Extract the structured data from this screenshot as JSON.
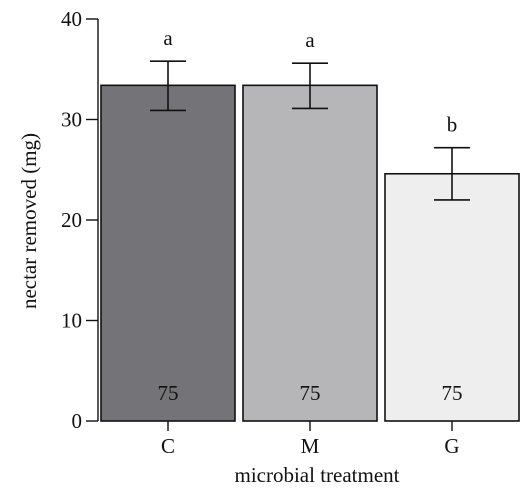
{
  "chart_data": {
    "type": "bar",
    "categories": [
      "C",
      "M",
      "G"
    ],
    "values": [
      33.4,
      33.4,
      24.6
    ],
    "error_bars": [
      {
        "low": 30.9,
        "high": 35.8
      },
      {
        "low": 31.1,
        "high": 35.6
      },
      {
        "low": 22.0,
        "high": 27.2
      }
    ],
    "significance_letters": [
      "a",
      "a",
      "b"
    ],
    "sample_sizes": [
      "75",
      "75",
      "75"
    ],
    "bar_colors": [
      "#747478",
      "#b6b6b8",
      "#eeeeee"
    ],
    "xlabel": "microbial treatment",
    "ylabel": "nectar removed (mg)",
    "ylim": [
      0,
      40
    ],
    "yticks": [
      0,
      10,
      20,
      30,
      40
    ],
    "grid": false
  }
}
